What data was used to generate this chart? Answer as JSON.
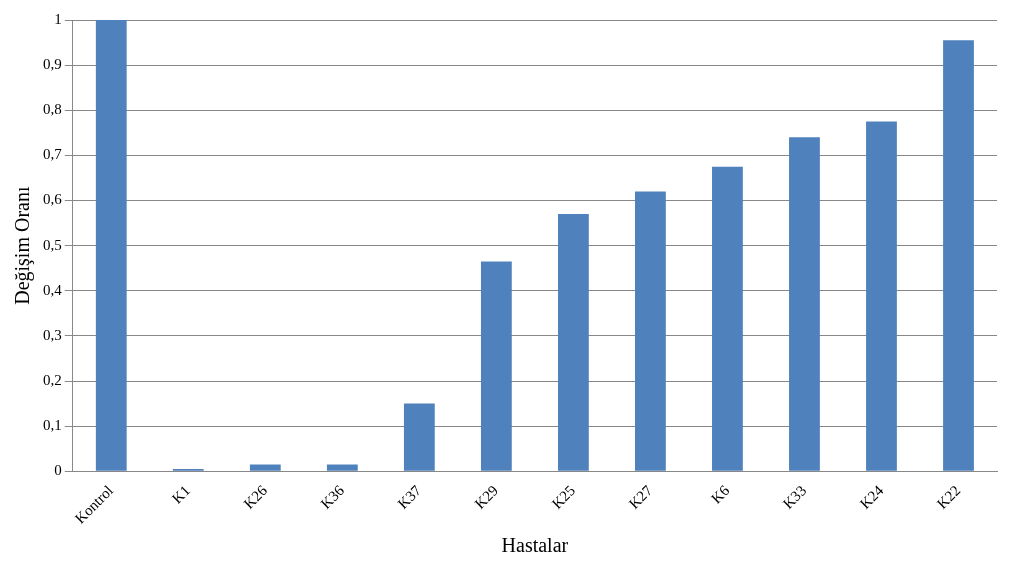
{
  "chart_data": {
    "type": "bar",
    "xlabel": "Hastalar",
    "ylabel": "Değişim Oranı",
    "categories": [
      "Kontrol",
      "K1",
      "K26",
      "K36",
      "K37",
      "K29",
      "K25",
      "K27",
      "K6",
      "K33",
      "K24",
      "K22"
    ],
    "values": [
      1.0,
      0.005,
      0.015,
      0.015,
      0.15,
      0.465,
      0.57,
      0.62,
      0.675,
      0.74,
      0.775,
      0.955
    ],
    "color": "#4f81bd",
    "ylim": [
      0,
      1
    ],
    "yticks": [
      0,
      {
        "value": 0.1,
        "label": "0,1"
      },
      {
        "value": 0.2,
        "label": "0,2"
      },
      {
        "value": 0.3,
        "label": "0,3"
      },
      {
        "value": 0.4,
        "label": "0,4"
      },
      {
        "value": 0.5,
        "label": "0,5"
      },
      {
        "value": 0.6,
        "label": "0,6"
      },
      {
        "value": 0.7,
        "label": "0,7"
      },
      {
        "value": 0.8,
        "label": "0,8"
      },
      {
        "value": 0.9,
        "label": "0,9"
      },
      1
    ],
    "grid": "y",
    "legend": false
  }
}
